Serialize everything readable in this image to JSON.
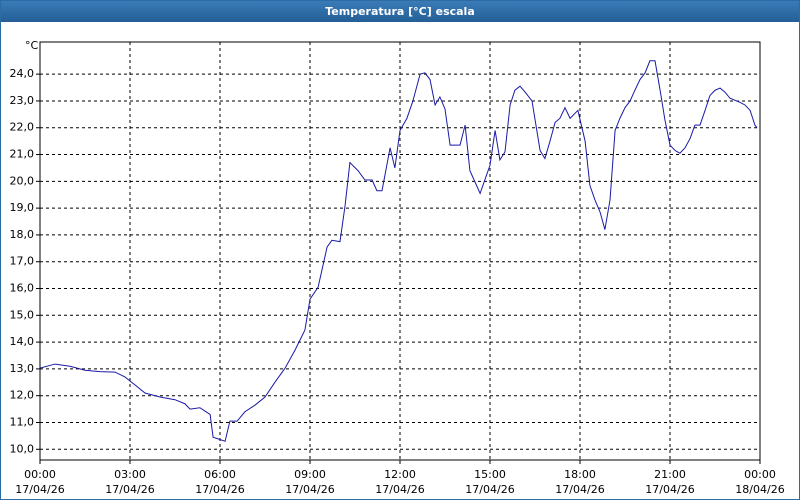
{
  "chart_data": {
    "type": "line",
    "title": "Temperatura [°C] escala",
    "y_label": "°C",
    "xlim": [
      0,
      24
    ],
    "ylim": [
      9.6,
      25.2
    ],
    "xticks": [
      {
        "value": 0,
        "label": "00:00",
        "sublabel": "17/04/26"
      },
      {
        "value": 3,
        "label": "03:00",
        "sublabel": "17/04/26"
      },
      {
        "value": 6,
        "label": "06:00",
        "sublabel": "17/04/26"
      },
      {
        "value": 9,
        "label": "09:00",
        "sublabel": "17/04/26"
      },
      {
        "value": 12,
        "label": "12:00",
        "sublabel": "17/04/26"
      },
      {
        "value": 15,
        "label": "15:00",
        "sublabel": "17/04/26"
      },
      {
        "value": 18,
        "label": "18:00",
        "sublabel": "17/04/26"
      },
      {
        "value": 21,
        "label": "21:00",
        "sublabel": "17/04/26"
      },
      {
        "value": 24,
        "label": "00:00",
        "sublabel": "18/04/26"
      }
    ],
    "yticks": [
      {
        "value": 10,
        "label": "10,0"
      },
      {
        "value": 11,
        "label": "11,0"
      },
      {
        "value": 12,
        "label": "12,0"
      },
      {
        "value": 13,
        "label": "13,0"
      },
      {
        "value": 14,
        "label": "14,0"
      },
      {
        "value": 15,
        "label": "15,0"
      },
      {
        "value": 16,
        "label": "16,0"
      },
      {
        "value": 17,
        "label": "17,0"
      },
      {
        "value": 18,
        "label": "18,0"
      },
      {
        "value": 19,
        "label": "19,0"
      },
      {
        "value": 20,
        "label": "20,0"
      },
      {
        "value": 21,
        "label": "21,0"
      },
      {
        "value": 22,
        "label": "22,0"
      },
      {
        "value": 23,
        "label": "23,0"
      },
      {
        "value": 24,
        "label": "24,0"
      }
    ],
    "grid": true,
    "x": [
      0,
      0.5,
      1,
      1.5,
      2,
      2.5,
      2.83,
      3.17,
      3.5,
      4,
      4.5,
      4.83,
      5,
      5.33,
      5.67,
      5.77,
      6.17,
      6.33,
      6.57,
      6.83,
      7.17,
      7.5,
      7.83,
      8.17,
      8.5,
      8.83,
      9,
      9.27,
      9.4,
      9.57,
      9.73,
      10,
      10.17,
      10.33,
      10.6,
      10.83,
      11.07,
      11.23,
      11.4,
      11.67,
      11.83,
      12,
      12.23,
      12.43,
      12.67,
      12.83,
      13,
      13.17,
      13.33,
      13.5,
      13.67,
      14,
      14.17,
      14.33,
      14.67,
      15,
      15.17,
      15.33,
      15.5,
      15.67,
      15.83,
      16,
      16.17,
      16.4,
      16.67,
      16.83,
      17,
      17.17,
      17.33,
      17.5,
      17.67,
      17.93,
      18.17,
      18.33,
      18.5,
      18.67,
      18.83,
      19,
      19.17,
      19.33,
      19.5,
      19.67,
      19.83,
      20,
      20.17,
      20.33,
      20.5,
      20.67,
      20.83,
      21,
      21.17,
      21.33,
      21.5,
      21.67,
      21.83,
      22,
      22.17,
      22.33,
      22.5,
      22.67,
      22.83,
      23,
      23.33,
      23.5,
      23.67,
      23.83,
      23.9
    ],
    "series": [
      {
        "color": "#1a1aa6",
        "values": [
          13.03,
          13.18,
          13.1,
          12.95,
          12.9,
          12.88,
          12.7,
          12.4,
          12.1,
          11.95,
          11.85,
          11.7,
          11.5,
          11.55,
          11.3,
          10.45,
          10.3,
          11.05,
          11.05,
          11.4,
          11.65,
          11.95,
          12.5,
          13.03,
          13.7,
          14.45,
          15.6,
          16.05,
          16.7,
          17.55,
          17.8,
          17.75,
          19.1,
          20.7,
          20.4,
          20.05,
          20.05,
          19.65,
          19.65,
          21.25,
          20.5,
          21.9,
          22.35,
          23.0,
          24.0,
          24.05,
          23.8,
          22.85,
          23.15,
          22.7,
          21.35,
          21.35,
          22.1,
          20.4,
          19.55,
          20.6,
          21.9,
          20.8,
          21.1,
          22.85,
          23.4,
          23.55,
          23.33,
          23.0,
          21.15,
          20.85,
          21.5,
          22.2,
          22.35,
          22.75,
          22.35,
          22.65,
          21.5,
          19.85,
          19.3,
          18.85,
          18.2,
          19.3,
          21.9,
          22.35,
          22.75,
          23.0,
          23.4,
          23.8,
          24.05,
          24.5,
          24.5,
          23.4,
          22.3,
          21.35,
          21.15,
          21.05,
          21.25,
          21.6,
          22.1,
          22.1,
          22.65,
          23.2,
          23.4,
          23.48,
          23.33,
          23.1,
          22.95,
          22.85,
          22.65,
          22.1,
          22.0
        ]
      }
    ]
  }
}
